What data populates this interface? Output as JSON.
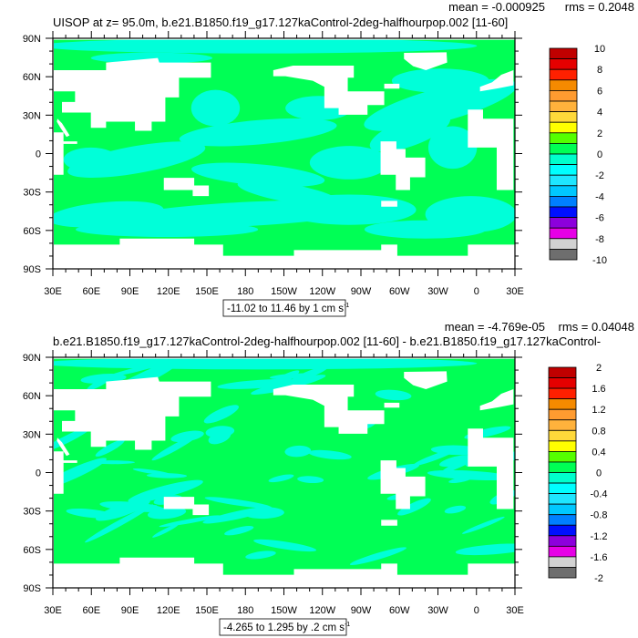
{
  "chart_data": [
    {
      "type": "heatmap",
      "title": "UISOP at z=  95.0m, b.e21.B1850.f19_g17.127kaControl-2deg-halfhourpop.002 [11-60]",
      "mean_label": "mean = -0.000925",
      "rms_label": "rms = 0.2048",
      "contour_info": {
        "text": "-11.02 to 11.46 by 1 cm s",
        "unit_exp": "-1"
      },
      "x_ticks": [
        "30E",
        "60E",
        "90E",
        "120E",
        "150E",
        "180",
        "150W",
        "120W",
        "90W",
        "60W",
        "30W",
        "0",
        "30E"
      ],
      "y_ticks": [
        "90N",
        "60N",
        "30N",
        "0",
        "30S",
        "60S",
        "90S"
      ],
      "colorbar": {
        "labels": [
          "10",
          "8",
          "6",
          "4",
          "2",
          "0",
          "-2",
          "-4",
          "-6",
          "-8",
          "-10"
        ],
        "colors": [
          "#C00000",
          "#E50000",
          "#FF2000",
          "#F58A00",
          "#FF9B30",
          "#FFB23C",
          "#FFD93A",
          "#FFFF00",
          "#55FF00",
          "#00FF55",
          "#00FFCC",
          "#00FFFF",
          "#1EE6FF",
          "#00C8FF",
          "#0080FF",
          "#0010FF",
          "#8C00DC",
          "#E600E6",
          "#D2D2D2",
          "#6E6E6E"
        ]
      },
      "field_colors": {
        "dominant": "#00FF55",
        "secondary": "#00FFD9",
        "missing": "#FFFFFF"
      }
    },
    {
      "type": "heatmap",
      "title": "b.e21.B1850.f19_g17.127kaControl-2deg-halfhourpop.002 [11-60] - b.e21.B1850.f19_g17.127kaControl-",
      "mean_label": "mean = -4.769e-05",
      "rms_label": "rms = 0.04048",
      "contour_info": {
        "text": "-4.265 to 1.295 by .2 cm s",
        "unit_exp": "-1"
      },
      "x_ticks": [
        "30E",
        "60E",
        "90E",
        "120E",
        "150E",
        "180",
        "150W",
        "120W",
        "90W",
        "60W",
        "30W",
        "0",
        "30E"
      ],
      "y_ticks": [
        "90N",
        "60N",
        "30N",
        "0",
        "30S",
        "60S",
        "90S"
      ],
      "colorbar": {
        "labels": [
          "2",
          "1.6",
          "1.2",
          "0.8",
          "0.4",
          "0",
          "-0.4",
          "-0.8",
          "-1.2",
          "-1.6",
          "-2"
        ],
        "colors": [
          "#C00000",
          "#E50000",
          "#FF2000",
          "#F58A00",
          "#FF9B30",
          "#FFB23C",
          "#FFD93A",
          "#FFFF00",
          "#55FF00",
          "#00FF55",
          "#00FFCC",
          "#00FFFF",
          "#1EE6FF",
          "#00C8FF",
          "#0080FF",
          "#0010FF",
          "#8C00DC",
          "#E600E6",
          "#D2D2D2",
          "#6E6E6E"
        ]
      },
      "field_colors": {
        "dominant": "#00FF55",
        "secondary": "#00FFD9",
        "missing": "#FFFFFF"
      }
    }
  ]
}
